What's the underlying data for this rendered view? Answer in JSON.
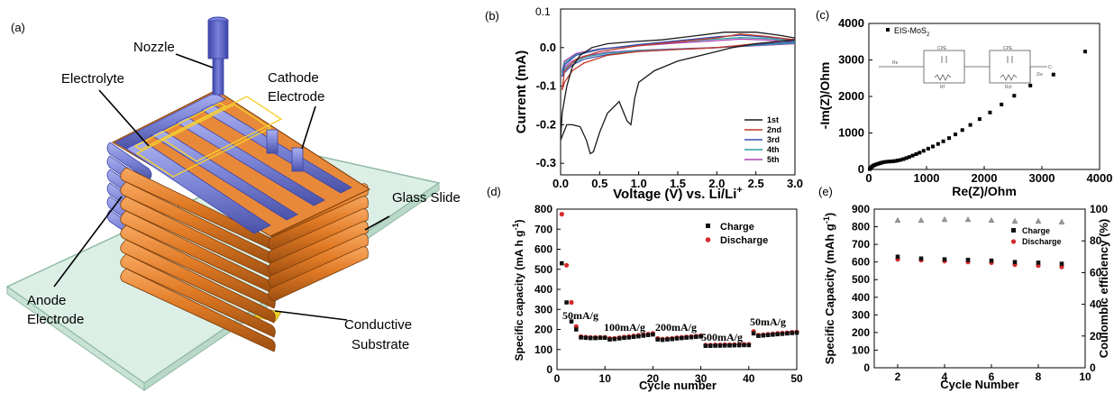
{
  "panel_a": {
    "letter": "(a)",
    "labels": {
      "nozzle": "Nozzle",
      "electrolyte": "Electrolyte",
      "cathode_line1": "Cathode",
      "cathode_line2": "Electrode",
      "glass": "Glass Slide",
      "anode_line1": "Anode",
      "anode_line2": "Electrode",
      "substrate_line1": "Conductive",
      "substrate_line2": "Substrate"
    },
    "colors": {
      "anode": "#e07a25",
      "cathode": "#7b83d6",
      "nozzle": "#5c64c8",
      "glass": "#dcefe6",
      "substrate": "#f0d22a"
    }
  },
  "panel_b": {
    "letter": "(b)",
    "ylabel": "Current (mA)",
    "xlabel": "Voltage (V) vs. Li/Li+",
    "xlabel_main": "Voltage (V) vs. Li/Li",
    "xlabel_sup": "+",
    "partial_tick": "0.1"
  },
  "panel_c": {
    "letter": "(c)",
    "ylabel": "-Im(Z)/Ohm",
    "xlabel": "Re(Z)/Ohm",
    "legend": "EIS-MoS",
    "legend_sub": "2",
    "circuit": {
      "r1": "Re",
      "c1": "CPE",
      "r2": "Rf",
      "c2": "CPE",
      "r3": "Rct",
      "w": "Zw",
      "out": "C-"
    }
  },
  "panel_d": {
    "letter": "(d)",
    "ylabel": "Specific capacity (mA h g",
    "ylabel_sup": "-1",
    "ylabel_end": ")",
    "xlabel": "Cycle number",
    "annotations": [
      "50mA/g",
      "100mA/g",
      "200mA/g",
      "500mA/g",
      "50mA/g"
    ]
  },
  "panel_e": {
    "letter": "(e)",
    "ylabel_left": "Specific Capacity (mAh g",
    "ylabel_left_sup": "-1",
    "ylabel_left_end": ")",
    "ylabel_right": "Coulombic efficiency (%)",
    "xlabel": "Cycle Number"
  },
  "chart_data": [
    {
      "panel": "b",
      "type": "line",
      "xlabel": "Voltage (V) vs. Li/Li+",
      "ylabel": "Current (mA)",
      "xlim": [
        0,
        3.0
      ],
      "ylim": [
        -0.33,
        0.1
      ],
      "xticks": [
        "0.0",
        "0.5",
        "1.0",
        "1.5",
        "2.0",
        "2.5",
        "3.0"
      ],
      "yticks": [
        "-0.3",
        "-0.2",
        "-0.1",
        "0.0"
      ],
      "legend_position": "lower-right",
      "series": [
        {
          "name": "1st",
          "color": "#1a1a1a",
          "x": [
            3.0,
            2.5,
            2.2,
            2.0,
            1.5,
            1.2,
            1.0,
            0.95,
            0.9,
            0.85,
            0.75,
            0.6,
            0.5,
            0.42,
            0.38,
            0.33,
            0.25,
            0.15,
            0.08,
            0.02,
            0.0,
            0.02,
            0.08,
            0.15,
            0.25,
            0.4,
            0.6,
            0.9,
            1.3,
            1.7,
            2.1,
            2.5,
            2.8,
            3.0
          ],
          "y": [
            0.02,
            0.01,
            0.0,
            -0.01,
            -0.035,
            -0.06,
            -0.09,
            -0.13,
            -0.2,
            -0.19,
            -0.14,
            -0.17,
            -0.22,
            -0.27,
            -0.275,
            -0.24,
            -0.205,
            -0.2,
            -0.2,
            -0.23,
            -0.24,
            -0.17,
            -0.1,
            -0.05,
            -0.02,
            0.0,
            0.01,
            0.015,
            0.02,
            0.03,
            0.04,
            0.04,
            0.032,
            0.025
          ]
        },
        {
          "name": "2nd",
          "color": "#c0392b",
          "x": [
            3.0,
            2.5,
            2.0,
            1.5,
            1.0,
            0.6,
            0.3,
            0.15,
            0.05,
            0.02,
            0.05,
            0.2,
            0.5,
            1.0,
            1.5,
            2.0,
            2.3,
            2.6,
            3.0
          ],
          "y": [
            0.02,
            0.01,
            0.0,
            -0.005,
            -0.01,
            -0.02,
            -0.04,
            -0.06,
            -0.09,
            -0.11,
            -0.06,
            -0.03,
            -0.01,
            0.005,
            0.015,
            0.025,
            0.035,
            0.03,
            0.02
          ]
        },
        {
          "name": "3rd",
          "color": "#3a4fb0",
          "x": [
            3.0,
            2.5,
            2.0,
            1.5,
            1.0,
            0.6,
            0.3,
            0.15,
            0.05,
            0.02,
            0.05,
            0.2,
            0.5,
            1.0,
            1.5,
            2.0,
            2.3,
            2.6,
            3.0
          ],
          "y": [
            0.015,
            0.008,
            0.0,
            -0.005,
            -0.01,
            -0.018,
            -0.03,
            -0.045,
            -0.065,
            -0.075,
            -0.045,
            -0.02,
            -0.005,
            0.008,
            0.018,
            0.028,
            0.032,
            0.028,
            0.02
          ]
        },
        {
          "name": "4th",
          "color": "#2aa0a0",
          "x": [
            3.0,
            2.5,
            2.0,
            1.5,
            1.0,
            0.6,
            0.3,
            0.15,
            0.05,
            0.02,
            0.05,
            0.2,
            0.5,
            1.0,
            1.5,
            2.0,
            2.3,
            2.6,
            3.0
          ],
          "y": [
            0.012,
            0.006,
            0.0,
            -0.004,
            -0.008,
            -0.014,
            -0.025,
            -0.04,
            -0.055,
            -0.065,
            -0.04,
            -0.018,
            -0.004,
            0.006,
            0.015,
            0.022,
            0.026,
            0.024,
            0.018
          ]
        },
        {
          "name": "5th",
          "color": "#b040b0",
          "x": [
            3.0,
            2.5,
            2.0,
            1.5,
            1.0,
            0.6,
            0.3,
            0.15,
            0.05,
            0.02,
            0.05,
            0.2,
            0.5,
            1.0,
            1.5,
            2.0,
            2.3,
            2.6,
            3.0
          ],
          "y": [
            0.01,
            0.005,
            0.0,
            -0.003,
            -0.007,
            -0.012,
            -0.022,
            -0.035,
            -0.05,
            -0.06,
            -0.035,
            -0.015,
            -0.003,
            0.005,
            0.012,
            0.018,
            0.022,
            0.02,
            0.015
          ]
        }
      ]
    },
    {
      "panel": "c",
      "type": "scatter",
      "xlabel": "Re(Z)/Ohm",
      "ylabel": "-Im(Z)/Ohm",
      "xlim": [
        0,
        4000
      ],
      "ylim": [
        0,
        4000
      ],
      "xticks": [
        "0",
        "1000",
        "2000",
        "3000",
        "4000"
      ],
      "yticks": [
        "0",
        "1000",
        "2000",
        "3000",
        "4000"
      ],
      "legend_position": "top-left",
      "series": [
        {
          "name": "EIS-MoS2",
          "color": "#000000",
          "x": [
            15,
            25,
            40,
            60,
            80,
            100,
            130,
            160,
            190,
            220,
            260,
            300,
            340,
            380,
            420,
            460,
            500,
            550,
            600,
            650,
            700,
            760,
            820,
            880,
            950,
            1030,
            1110,
            1200,
            1290,
            1390,
            1500,
            1620,
            1760,
            1920,
            2100,
            2300,
            2520,
            2800,
            3200,
            3750
          ],
          "y": [
            10,
            35,
            60,
            85,
            105,
            120,
            140,
            155,
            170,
            185,
            200,
            210,
            215,
            220,
            225,
            232,
            245,
            262,
            285,
            310,
            340,
            380,
            420,
            460,
            510,
            570,
            630,
            700,
            770,
            860,
            960,
            1080,
            1220,
            1380,
            1560,
            1780,
            2020,
            2300,
            2600,
            3230
          ]
        }
      ]
    },
    {
      "panel": "d",
      "type": "scatter",
      "xlabel": "Cycle number",
      "ylabel": "Specific capacity (mA h g-1)",
      "xlim": [
        0,
        50
      ],
      "ylim": [
        0,
        800
      ],
      "xticks": [
        "0",
        "10",
        "20",
        "30",
        "40",
        "50"
      ],
      "yticks": [
        "0",
        "100",
        "200",
        "300",
        "400",
        "500",
        "600",
        "700",
        "800"
      ],
      "legend_position": "top-right",
      "series": [
        {
          "name": "Charge",
          "color": "#111111",
          "marker": "square",
          "x": [
            1,
            2,
            3,
            4,
            5,
            6,
            7,
            8,
            9,
            10,
            11,
            12,
            13,
            14,
            15,
            16,
            17,
            18,
            19,
            20,
            21,
            22,
            23,
            24,
            25,
            26,
            27,
            28,
            29,
            30,
            31,
            32,
            33,
            34,
            35,
            36,
            37,
            38,
            39,
            40,
            41,
            42,
            43,
            44,
            45,
            46,
            47,
            48,
            49,
            50
          ],
          "y": [
            530,
            335,
            240,
            200,
            160,
            158,
            157,
            157,
            158,
            158,
            150,
            152,
            155,
            158,
            160,
            163,
            166,
            169,
            172,
            175,
            150,
            148,
            150,
            152,
            155,
            157,
            159,
            161,
            163,
            165,
            118,
            118,
            119,
            119,
            120,
            120,
            121,
            121,
            122,
            122,
            180,
            168,
            170,
            172,
            174,
            176,
            178,
            180,
            182,
            184
          ]
        },
        {
          "name": "Discharge",
          "color": "#d42a2a",
          "marker": "circle",
          "x": [
            1,
            2,
            3,
            4,
            5,
            6,
            7,
            8,
            9,
            10,
            11,
            12,
            13,
            14,
            15,
            16,
            17,
            18,
            19,
            20,
            21,
            22,
            23,
            24,
            25,
            26,
            27,
            28,
            29,
            30,
            31,
            32,
            33,
            34,
            35,
            36,
            37,
            38,
            39,
            40,
            41,
            42,
            43,
            44,
            45,
            46,
            47,
            48,
            49,
            50
          ],
          "y": [
            775,
            520,
            335,
            215,
            165,
            162,
            160,
            160,
            161,
            161,
            155,
            156,
            159,
            162,
            165,
            168,
            171,
            174,
            177,
            180,
            155,
            152,
            154,
            156,
            159,
            161,
            163,
            165,
            167,
            169,
            122,
            122,
            123,
            123,
            124,
            124,
            125,
            125,
            126,
            126,
            190,
            172,
            174,
            176,
            178,
            180,
            182,
            184,
            186,
            188
          ]
        }
      ],
      "annotations": [
        "50mA/g",
        "100mA/g",
        "200mA/g",
        "500mA/g",
        "50mA/g"
      ]
    },
    {
      "panel": "e",
      "type": "scatter",
      "xlabel": "Cycle Number",
      "ylabel": "Specific Capacity (mAh g-1)",
      "ylabel_right": "Coulombic efficiency (%)",
      "xlim": [
        1,
        10
      ],
      "ylim": [
        0,
        900
      ],
      "ylim_right": [
        0,
        100
      ],
      "xticks": [
        "2",
        "4",
        "6",
        "8",
        "10"
      ],
      "yticks": [
        "0",
        "100",
        "200",
        "300",
        "400",
        "500",
        "600",
        "700",
        "800",
        "900"
      ],
      "yticks_right": [
        "0",
        "20",
        "40",
        "60",
        "80",
        "100"
      ],
      "legend_position": "top-right",
      "series": [
        {
          "name": "Charge",
          "color": "#111111",
          "marker": "square",
          "x": [
            2,
            3,
            4,
            5,
            6,
            7,
            8,
            9
          ],
          "y": [
            630,
            620,
            615,
            612,
            608,
            600,
            596,
            590
          ]
        },
        {
          "name": "Discharge",
          "color": "#d42a2a",
          "marker": "circle",
          "x": [
            2,
            3,
            4,
            5,
            6,
            7,
            8,
            9
          ],
          "y": [
            615,
            610,
            605,
            600,
            596,
            585,
            580,
            572
          ]
        },
        {
          "name": "Coulombic efficiency",
          "color": "#777777",
          "marker": "triangle",
          "axis": "right",
          "x": [
            2,
            3,
            4,
            5,
            6,
            7,
            8,
            9
          ],
          "y": [
            93,
            93,
            93.5,
            93.5,
            93,
            92.5,
            92.5,
            92
          ]
        }
      ]
    }
  ]
}
